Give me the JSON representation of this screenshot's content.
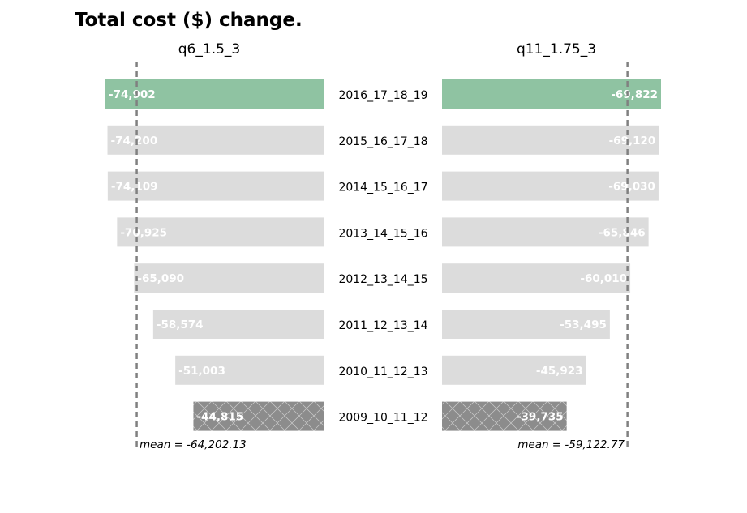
{
  "title": "Total cost ($) change.",
  "colors": {
    "highlight": "#8fc3a2",
    "default": "#dcdcdc",
    "baseline": "#8c8c8c",
    "hatch": "#ffffff",
    "mean_line": "#808080"
  },
  "chart_data": [
    {
      "type": "bar",
      "orientation": "horizontal",
      "title": "q6_1.5_3",
      "categories": [
        "2016_17_18_19",
        "2015_16_17_18",
        "2014_15_16_17",
        "2013_14_15_16",
        "2012_13_14_15",
        "2011_12_13_14",
        "2010_11_12_13",
        "2009_10_11_12"
      ],
      "values": [
        -74902,
        -74200,
        -74109,
        -70925,
        -65090,
        -58574,
        -51003,
        -44815
      ],
      "value_labels": [
        "-74,902",
        "-74,200",
        "-74,109",
        "-70,925",
        "-65,090",
        "-58,574",
        "-51,003",
        "-44,815"
      ],
      "bar_styles": [
        "highlight",
        "default",
        "default",
        "default",
        "default",
        "default",
        "default",
        "baseline-hatched"
      ],
      "mean": -64202.13,
      "mean_label": "mean = -64,202.13",
      "grid": false
    },
    {
      "type": "bar",
      "orientation": "horizontal",
      "title": "q11_1.75_3",
      "categories": [
        "2016_17_18_19",
        "2015_16_17_18",
        "2014_15_16_17",
        "2013_14_15_16",
        "2012_13_14_15",
        "2011_12_13_14",
        "2010_11_12_13",
        "2009_10_11_12"
      ],
      "values": [
        -69822,
        -69120,
        -69030,
        -65846,
        -60010,
        -53495,
        -45923,
        -39735
      ],
      "value_labels": [
        "-69,822",
        "-69,120",
        "-69,030",
        "-65,846",
        "-60,010",
        "-53,495",
        "-45,923",
        "-39,735"
      ],
      "bar_styles": [
        "highlight",
        "default",
        "default",
        "default",
        "default",
        "default",
        "default",
        "baseline-hatched"
      ],
      "mean": -59122.77,
      "mean_label": "mean = -59,122.77",
      "grid": false
    }
  ]
}
